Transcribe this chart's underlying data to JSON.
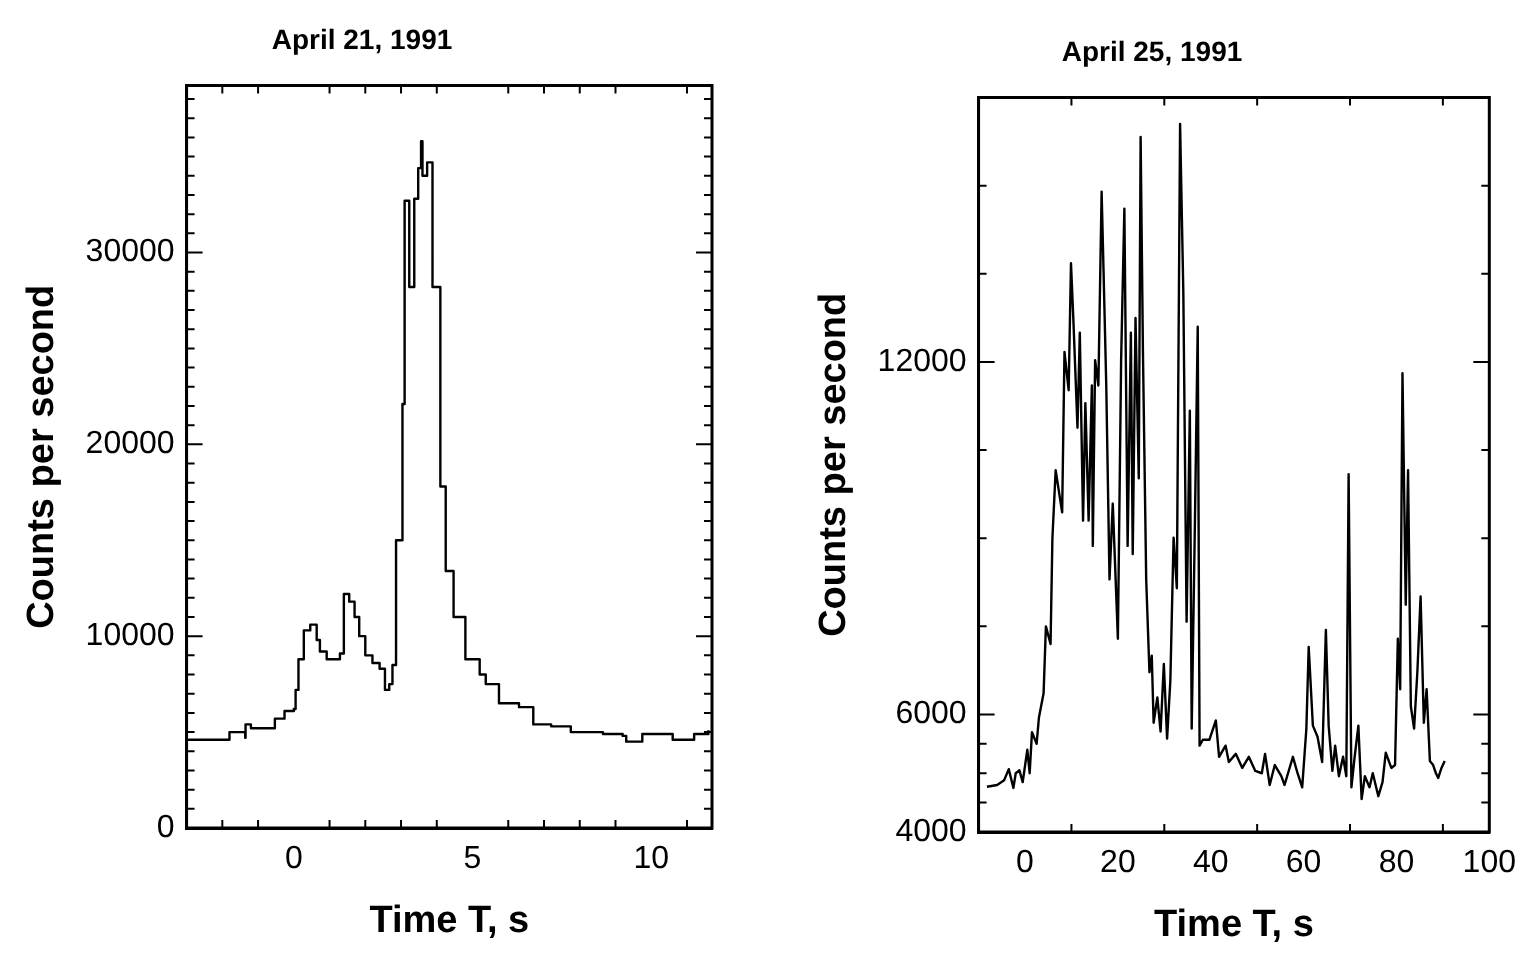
{
  "chart_data": [
    {
      "type": "step",
      "title": "April 21, 1991",
      "xlabel": "Time T, s",
      "ylabel": "Counts per second",
      "color": "#000000",
      "x": [
        -3,
        -1.9,
        -1.8,
        -1.36,
        -1.35,
        -1.2,
        -0.53,
        -0.26,
        0,
        0.05,
        0.13,
        0.28,
        0.46,
        0.64,
        0.73,
        0.92,
        1.1,
        1.29,
        1.4,
        1.55,
        1.7,
        1.83,
        2.0,
        2.2,
        2.4,
        2.55,
        2.67,
        2.76,
        2.86,
        3.04,
        3.1,
        3.23,
        3.37,
        3.48,
        3.56,
        3.6,
        3.73,
        3.88,
        4.1,
        4.25,
        4.47,
        4.8,
        5.2,
        5.37,
        5.74,
        6.3,
        6.7,
        7.2,
        7.75,
        8.65,
        9.2,
        9.3,
        9.75,
        10.6,
        11.2,
        11.6
      ],
      "values": [
        4600,
        4600,
        5000,
        4700,
        5400,
        5200,
        5700,
        6100,
        6200,
        7200,
        8800,
        10300,
        10600,
        9800,
        9200,
        8800,
        8800,
        9100,
        12200,
        11800,
        11000,
        10000,
        9000,
        8600,
        8300,
        7200,
        7500,
        8500,
        15000,
        22100,
        32700,
        28200,
        32800,
        34400,
        35800,
        34000,
        34700,
        28200,
        17800,
        13400,
        11000,
        8800,
        8000,
        7500,
        6500,
        6300,
        5400,
        5300,
        5000,
        4900,
        4800,
        4500,
        4900,
        4600,
        4900,
        5100
      ],
      "xlim": [
        -3,
        11.7
      ],
      "ylim": [
        0,
        38700
      ],
      "xticks": [
        {
          "value": -2,
          "label": null
        },
        {
          "value": -1,
          "label": null
        },
        0,
        {
          "value": 1,
          "label": null
        },
        {
          "value": 2,
          "label": null
        },
        {
          "value": 3,
          "label": null
        },
        {
          "value": 4,
          "label": null
        },
        5,
        {
          "value": 6,
          "label": null
        },
        {
          "value": 7,
          "label": null
        },
        {
          "value": 8,
          "label": null
        },
        {
          "value": 9,
          "label": null
        },
        10,
        {
          "value": 11,
          "label": null
        }
      ],
      "yticks": [
        0,
        {
          "value": 1000,
          "label": null
        },
        {
          "value": 2000,
          "label": null
        },
        {
          "value": 3000,
          "label": null
        },
        {
          "value": 4000,
          "label": null
        },
        {
          "value": 5000,
          "label": null
        },
        {
          "value": 6000,
          "label": null
        },
        {
          "value": 7000,
          "label": null
        },
        {
          "value": 8000,
          "label": null
        },
        {
          "value": 9000,
          "label": null
        },
        10000,
        {
          "value": 11000,
          "label": null
        },
        {
          "value": 12000,
          "label": null
        },
        {
          "value": 13000,
          "label": null
        },
        {
          "value": 14000,
          "label": null
        },
        {
          "value": 15000,
          "label": null
        },
        {
          "value": 16000,
          "label": null
        },
        {
          "value": 17000,
          "label": null
        },
        {
          "value": 18000,
          "label": null
        },
        {
          "value": 19000,
          "label": null
        },
        20000,
        {
          "value": 21000,
          "label": null
        },
        {
          "value": 22000,
          "label": null
        },
        {
          "value": 23000,
          "label": null
        },
        {
          "value": 24000,
          "label": null
        },
        {
          "value": 25000,
          "label": null
        },
        {
          "value": 26000,
          "label": null
        },
        {
          "value": 27000,
          "label": null
        },
        {
          "value": 28000,
          "label": null
        },
        {
          "value": 29000,
          "label": null
        },
        30000,
        {
          "value": 31000,
          "label": null
        },
        {
          "value": 32000,
          "label": null
        },
        {
          "value": 33000,
          "label": null
        },
        {
          "value": 34000,
          "label": null
        },
        {
          "value": 35000,
          "label": null
        },
        {
          "value": 36000,
          "label": null
        },
        {
          "value": 37000,
          "label": null
        },
        {
          "value": 38000,
          "label": null
        }
      ]
    },
    {
      "type": "line",
      "title": "April 25, 1991",
      "xlabel": "Time T, s",
      "ylabel": "Counts per second",
      "color": "#000000",
      "x": [
        -8.2,
        -6,
        -4.5,
        -3.5,
        -2.5,
        -2,
        -1.2,
        -0.5,
        0.5,
        1,
        1.5,
        2.5,
        3,
        4,
        4.5,
        5.5,
        5.9,
        6.6,
        8,
        8.5,
        9.4,
        9.9,
        10.4,
        11.3,
        11.8,
        12.5,
        13,
        13.7,
        14.4,
        14.6,
        15.1,
        15.8,
        16.5,
        16.9,
        17.5,
        18.2,
        18.9,
        20,
        20.7,
        21.4,
        22.1,
        22.8,
        23.2,
        23.8,
        24.5,
        24.9,
        25.4,
        26.1,
        26.8,
        27.3,
        27.7,
        28.5,
        29.2,
        29.9,
        30.6,
        31.3,
        32,
        32.7,
        33.4,
        34.1,
        34.8,
        35.5,
        35.9,
        36.6,
        37.2,
        37.6,
        38.3,
        39.7,
        41.1,
        41.8,
        43.2,
        43.9,
        45.4,
        46.8,
        48.2,
        49.6,
        51,
        51.7,
        52.7,
        53.8,
        55.2,
        55.9,
        57.7,
        58.7,
        59.7,
        60.6,
        61.1,
        62,
        63,
        64,
        64.8,
        65.4,
        66.2,
        66.8,
        67.6,
        68.5,
        69.2,
        69.7,
        70.3,
        71,
        71.8,
        72.5,
        73.2,
        74.2,
        74.9,
        76.1,
        77,
        77.7,
        78.9,
        79.7,
        80.3,
        80.8,
        81.3,
        82,
        82.5,
        83.1,
        83.8,
        84.5,
        85.2,
        85.9,
        86.5,
        87.2,
        87.9,
        88.5,
        89,
        89.7,
        90.4
      ],
      "values": [
        4770,
        4800,
        4880,
        5070,
        4750,
        5000,
        5050,
        4850,
        5400,
        5000,
        5700,
        5500,
        5950,
        6360,
        7500,
        7200,
        9000,
        10160,
        9440,
        12170,
        11520,
        13680,
        12750,
        10880,
        12500,
        9300,
        11300,
        9300,
        11600,
        8870,
        12030,
        11600,
        14900,
        13600,
        11600,
        8300,
        9590,
        7290,
        12030,
        14610,
        8870,
        12500,
        8730,
        12750,
        10020,
        15830,
        12170,
        8300,
        6720,
        7000,
        5860,
        6290,
        5710,
        6860,
        5590,
        6570,
        9010,
        8150,
        16050,
        13180,
        7580,
        11170,
        5760,
        9300,
        12600,
        5470,
        5570,
        5570,
        5900,
        5280,
        5470,
        5190,
        5330,
        5090,
        5280,
        5040,
        5000,
        5330,
        4800,
        5140,
        4950,
        4800,
        5280,
        5000,
        4760,
        5760,
        7150,
        5810,
        5620,
        5190,
        7440,
        5810,
        5040,
        5470,
        4950,
        5280,
        4950,
        10090,
        4760,
        5280,
        5810,
        4560,
        4950,
        4760,
        5000,
        4610,
        4850,
        5350,
        5090,
        5140,
        7290,
        6430,
        11810,
        7870,
        10160,
        6140,
        5760,
        6720,
        8010,
        5860,
        6430,
        5210,
        5140,
        5000,
        4920,
        5090,
        5210
      ],
      "xlim": [
        -10,
        100
      ],
      "ylim": [
        4000,
        16500
      ],
      "xticks": [
        {
          "value": -10,
          "label": null
        },
        0,
        {
          "value": 10,
          "label": null
        },
        20,
        {
          "value": 30,
          "label": null
        },
        40,
        {
          "value": 50,
          "label": null
        },
        60,
        {
          "value": 70,
          "label": null
        },
        80,
        {
          "value": 90,
          "label": null
        },
        100
      ],
      "yticks": [
        4000,
        {
          "value": 4500,
          "label": null
        },
        {
          "value": 5000,
          "label": null
        },
        {
          "value": 5500,
          "label": null
        },
        6000,
        {
          "value": 7500,
          "label": null
        },
        {
          "value": 9000,
          "label": null
        },
        {
          "value": 10500,
          "label": null
        },
        12000,
        {
          "value": 13500,
          "label": null
        },
        {
          "value": 15000,
          "label": null
        }
      ]
    }
  ]
}
